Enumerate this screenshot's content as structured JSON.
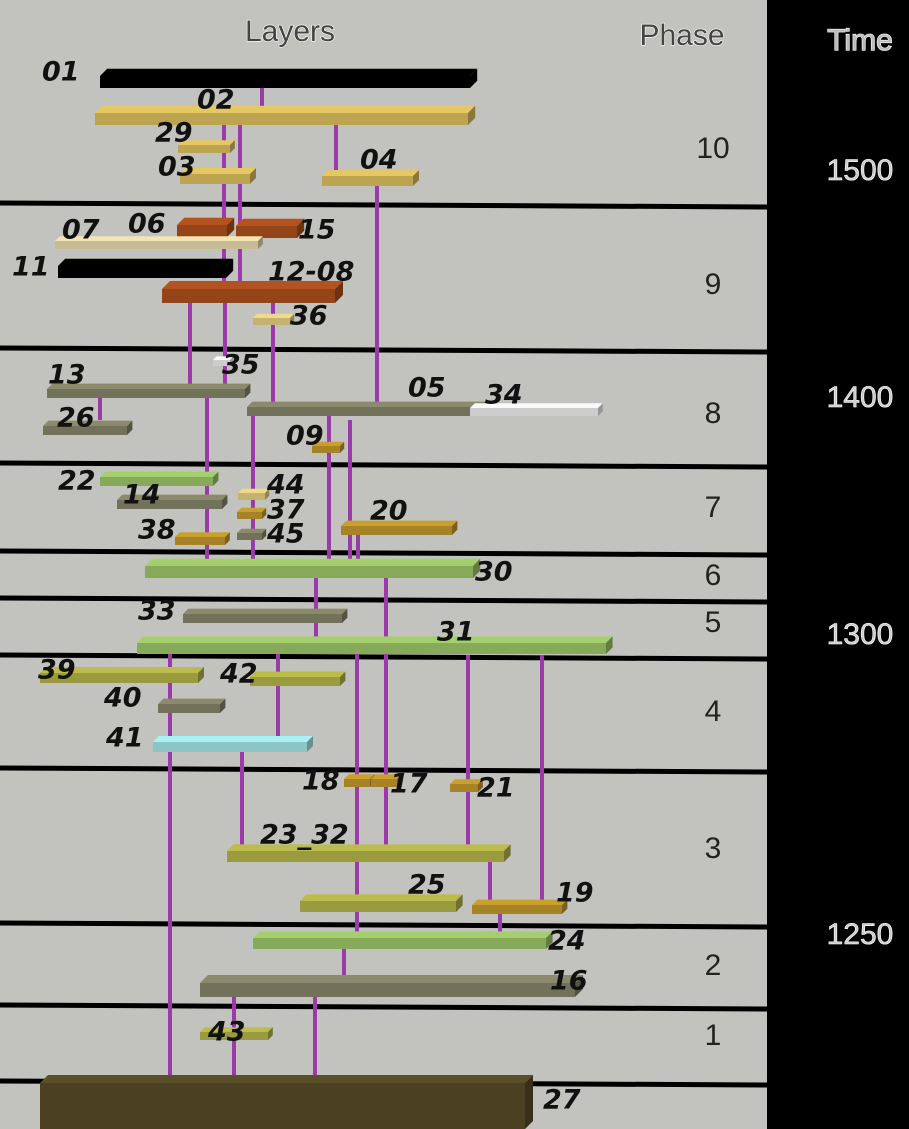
{
  "header": {
    "layers": "Layers",
    "phase": "Phase",
    "time": "Time"
  },
  "layers": [
    "01",
    "02",
    "29",
    "03",
    "04",
    "06",
    "15",
    "07",
    "11",
    "12-08",
    "36",
    "35",
    "13",
    "26",
    "05",
    "34",
    "09",
    "22",
    "14",
    "44",
    "37",
    "45",
    "38",
    "20",
    "30",
    "33",
    "31",
    "39",
    "42",
    "40",
    "41",
    "18",
    "17",
    "21",
    "23_32",
    "25",
    "19",
    "24",
    "16",
    "43",
    "27"
  ],
  "phases": [
    "10",
    "9",
    "8",
    "7",
    "6",
    "5",
    "4",
    "3",
    "2",
    "1"
  ],
  "times": [
    "1500",
    "1400",
    "1300",
    "1250"
  ]
}
